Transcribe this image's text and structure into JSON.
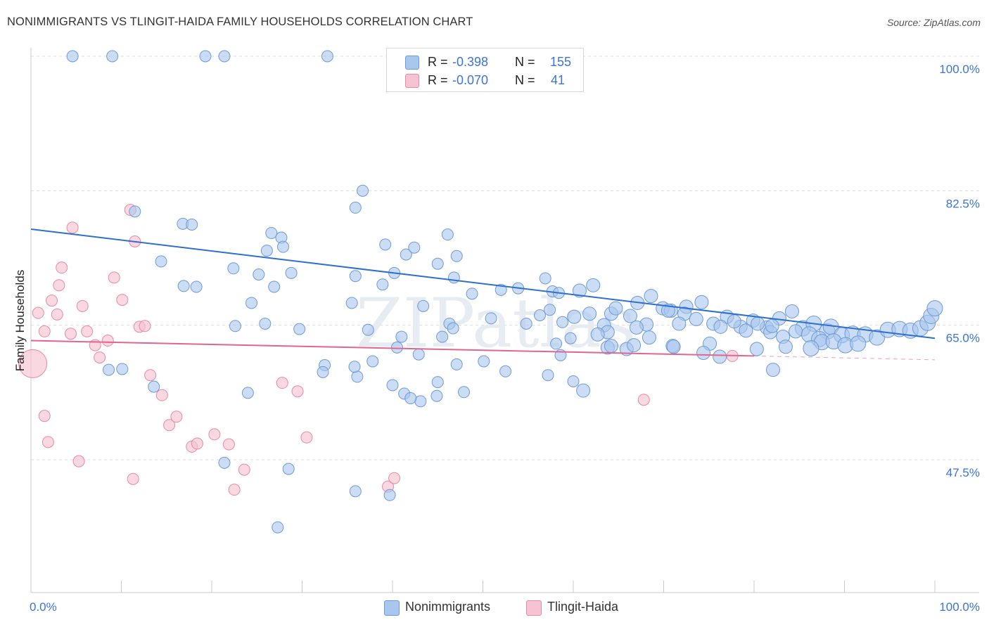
{
  "title": "NONIMMIGRANTS VS TLINGIT-HAIDA FAMILY HOUSEHOLDS CORRELATION CHART",
  "source": "Source: ZipAtlas.com",
  "watermark": "ZIPatlas",
  "colors": {
    "blue_fill": "#a9c6ec",
    "blue_stroke": "#6d9ad8",
    "blue_line": "#2f6fd0",
    "pink_fill": "#f6c3d3",
    "pink_stroke": "#e58aa7",
    "pink_line": "#e06690",
    "axis_text": "#3b74d6"
  },
  "legend": {
    "rows": [
      {
        "r_label": "R =",
        "r_value": "-0.398",
        "n_label": "N =",
        "n_value": "155"
      },
      {
        "r_label": "R =",
        "r_value": "-0.070",
        "n_label": "N =",
        "n_value": "41"
      }
    ]
  },
  "bottom_legend": [
    "Nonimmigrants",
    "Tlingit-Haida"
  ],
  "chart_data": {
    "type": "scatter",
    "title": "NONIMMIGRANTS VS TLINGIT-HAIDA FAMILY HOUSEHOLDS CORRELATION CHART",
    "xlabel": "",
    "ylabel": "Family Households",
    "xlim": [
      0,
      100
    ],
    "ylim": [
      33,
      102
    ],
    "x_tick_labels": [
      "0.0%",
      "100.0%"
    ],
    "y_ticks": [
      47.5,
      65.0,
      82.5,
      100.0
    ],
    "y_tick_labels": [
      "47.5%",
      "65.0%",
      "82.5%",
      "100.0%"
    ],
    "grid": true,
    "series": [
      {
        "name": "Nonimmigrants",
        "r": -0.398,
        "n": 155,
        "trend": {
          "x": [
            0,
            100
          ],
          "y": [
            77.5,
            63.3
          ]
        },
        "points": [
          [
            4.6,
            100
          ],
          [
            9.0,
            100
          ],
          [
            19.3,
            100
          ],
          [
            21.4,
            100
          ],
          [
            32.8,
            100
          ],
          [
            11.5,
            79.8
          ],
          [
            35.9,
            80.3
          ],
          [
            36.7,
            82.5
          ],
          [
            16.8,
            78.2
          ],
          [
            17.8,
            78.1
          ],
          [
            26.6,
            77.0
          ],
          [
            27.7,
            76.4
          ],
          [
            14.4,
            73.3
          ],
          [
            26.1,
            74.7
          ],
          [
            27.9,
            75.2
          ],
          [
            39.2,
            75.5
          ],
          [
            41.5,
            74.2
          ],
          [
            42.4,
            75.1
          ],
          [
            46.1,
            76.8
          ],
          [
            47.1,
            74.0
          ],
          [
            22.4,
            72.4
          ],
          [
            25.2,
            71.6
          ],
          [
            26.9,
            70.0
          ],
          [
            28.8,
            71.8
          ],
          [
            35.9,
            71.4
          ],
          [
            38.9,
            70.3
          ],
          [
            40.2,
            71.8
          ],
          [
            16.9,
            70.1
          ],
          [
            18.3,
            70.0
          ],
          [
            24.4,
            67.9
          ],
          [
            35.5,
            67.9
          ],
          [
            43.4,
            67.5
          ],
          [
            45.0,
            73.0
          ],
          [
            46.8,
            71.2
          ],
          [
            48.8,
            69.1
          ],
          [
            52.0,
            69.6
          ],
          [
            53.9,
            69.8
          ],
          [
            56.9,
            71.1
          ],
          [
            57.7,
            69.4
          ],
          [
            58.4,
            69.2
          ],
          [
            60.7,
            69.5
          ],
          [
            62.2,
            70.2
          ],
          [
            46.3,
            65.2
          ],
          [
            50.9,
            65.9
          ],
          [
            54.8,
            65.2
          ],
          [
            56.3,
            66.3
          ],
          [
            57.4,
            67.0
          ],
          [
            58.8,
            65.4
          ],
          [
            60.1,
            66.1
          ],
          [
            61.8,
            66.5
          ],
          [
            63.4,
            65.0
          ],
          [
            64.2,
            66.5
          ],
          [
            67.1,
            67.9
          ],
          [
            68.6,
            68.8
          ],
          [
            69.9,
            67.2
          ],
          [
            70.8,
            66.9
          ],
          [
            72.5,
            67.4
          ],
          [
            74.2,
            68.0
          ],
          [
            64.7,
            67.2
          ],
          [
            66.3,
            66.2
          ],
          [
            68.1,
            65.1
          ],
          [
            70.5,
            66.9
          ],
          [
            72.3,
            66.5
          ],
          [
            73.6,
            65.8
          ],
          [
            75.5,
            65.2
          ],
          [
            77.0,
            66.1
          ],
          [
            78.5,
            64.8
          ],
          [
            79.9,
            65.6
          ],
          [
            81.4,
            64.7
          ],
          [
            82.8,
            65.9
          ],
          [
            84.2,
            66.8
          ],
          [
            85.4,
            64.6
          ],
          [
            86.6,
            65.2
          ],
          [
            88.1,
            64.2
          ],
          [
            76.3,
            64.8
          ],
          [
            77.8,
            65.5
          ],
          [
            79.1,
            64.3
          ],
          [
            80.4,
            65.2
          ],
          [
            81.8,
            64.1
          ],
          [
            83.2,
            63.5
          ],
          [
            84.6,
            64.2
          ],
          [
            86.1,
            63.8
          ],
          [
            87.2,
            63.2
          ],
          [
            88.5,
            64.8
          ],
          [
            89.7,
            63.7
          ],
          [
            90.9,
            63.9
          ],
          [
            92.3,
            63.8
          ],
          [
            93.6,
            63.4
          ],
          [
            94.8,
            64.4
          ],
          [
            96.1,
            64.5
          ],
          [
            97.3,
            64.3
          ],
          [
            98.4,
            64.6
          ],
          [
            99.2,
            65.3
          ],
          [
            99.6,
            66.2
          ],
          [
            100.0,
            67.2
          ],
          [
            87.5,
            62.8
          ],
          [
            88.8,
            62.9
          ],
          [
            90.1,
            62.4
          ],
          [
            91.5,
            62.6
          ],
          [
            86.3,
            62.0
          ],
          [
            83.5,
            62.2
          ],
          [
            80.3,
            61.9
          ],
          [
            76.2,
            60.9
          ],
          [
            82.1,
            59.2
          ],
          [
            63.8,
            62.1
          ],
          [
            71.0,
            62.3
          ],
          [
            75.1,
            62.6
          ],
          [
            65.9,
            61.9
          ],
          [
            67.0,
            64.7
          ],
          [
            71.7,
            65.2
          ],
          [
            74.4,
            61.4
          ],
          [
            63.8,
            64.1
          ],
          [
            59.7,
            63.3
          ],
          [
            62.7,
            63.8
          ],
          [
            58.1,
            62.6
          ],
          [
            71.1,
            62.2
          ],
          [
            82.0,
            64.9
          ],
          [
            47.1,
            59.9
          ],
          [
            37.8,
            60.3
          ],
          [
            40.5,
            62.1
          ],
          [
            42.9,
            61.2
          ],
          [
            45.5,
            63.5
          ],
          [
            64.2,
            62.3
          ],
          [
            68.4,
            63.4
          ],
          [
            66.7,
            62.4
          ],
          [
            8.6,
            59.2
          ],
          [
            10.1,
            59.3
          ],
          [
            13.6,
            57.0
          ],
          [
            22.6,
            64.9
          ],
          [
            25.9,
            65.2
          ],
          [
            37.3,
            64.4
          ],
          [
            41.0,
            63.5
          ],
          [
            46.7,
            64.6
          ],
          [
            29.7,
            64.5
          ],
          [
            32.5,
            59.8
          ],
          [
            36.1,
            58.3
          ],
          [
            40.0,
            57.2
          ],
          [
            41.3,
            56.1
          ],
          [
            43.1,
            55.1
          ],
          [
            44.9,
            55.8
          ],
          [
            47.9,
            56.3
          ],
          [
            24.0,
            56.2
          ],
          [
            32.3,
            58.9
          ],
          [
            52.5,
            59.0
          ],
          [
            57.2,
            58.5
          ],
          [
            60.0,
            57.7
          ],
          [
            61.1,
            56.5
          ],
          [
            35.8,
            59.6
          ],
          [
            42.0,
            55.5
          ],
          [
            45.0,
            57.6
          ],
          [
            50.1,
            60.3
          ],
          [
            28.5,
            46.3
          ],
          [
            21.4,
            47.1
          ],
          [
            35.9,
            43.4
          ],
          [
            27.3,
            38.7
          ],
          [
            39.7,
            42.9
          ],
          [
            58.6,
            61.1
          ]
        ]
      },
      {
        "name": "Tlingit-Haida",
        "r": -0.07,
        "n": 41,
        "trend": {
          "x": [
            0,
            80
          ],
          "y": [
            63.0,
            61.0
          ]
        },
        "trend_dashed": {
          "x": [
            80,
            100
          ],
          "y": [
            61.0,
            60.5
          ]
        },
        "points": [
          [
            0.2,
            60.0
          ],
          [
            0.8,
            66.6
          ],
          [
            1.5,
            64.2
          ],
          [
            2.3,
            68.2
          ],
          [
            3.1,
            70.2
          ],
          [
            3.4,
            72.5
          ],
          [
            4.6,
            77.7
          ],
          [
            2.9,
            66.4
          ],
          [
            4.4,
            63.9
          ],
          [
            5.7,
            67.5
          ],
          [
            6.2,
            64.2
          ],
          [
            7.1,
            62.4
          ],
          [
            7.6,
            60.8
          ],
          [
            8.5,
            63.0
          ],
          [
            9.2,
            71.2
          ],
          [
            10.1,
            68.3
          ],
          [
            11.0,
            80.0
          ],
          [
            11.5,
            75.9
          ],
          [
            12.0,
            64.8
          ],
          [
            12.6,
            64.9
          ],
          [
            13.2,
            58.5
          ],
          [
            14.5,
            55.9
          ],
          [
            15.3,
            52.0
          ],
          [
            16.1,
            53.1
          ],
          [
            17.8,
            49.2
          ],
          [
            18.4,
            49.6
          ],
          [
            20.3,
            50.8
          ],
          [
            21.9,
            49.5
          ],
          [
            23.6,
            46.2
          ],
          [
            22.5,
            43.6
          ],
          [
            11.3,
            45.0
          ],
          [
            1.5,
            53.2
          ],
          [
            1.9,
            49.8
          ],
          [
            5.3,
            47.3
          ],
          [
            39.5,
            44.0
          ],
          [
            40.2,
            45.1
          ],
          [
            27.8,
            57.5
          ],
          [
            29.5,
            56.4
          ],
          [
            30.5,
            50.4
          ],
          [
            67.8,
            55.3
          ],
          [
            77.6,
            61.0
          ]
        ]
      }
    ]
  }
}
